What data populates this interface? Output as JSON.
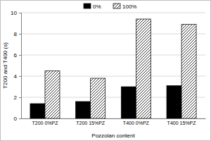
{
  "chart_data": {
    "type": "bar",
    "x_label": "Pozzolan content",
    "y_label": "T200 and T400 (s)",
    "categories": [
      "T200 0%PZ",
      "T200 15%PZ",
      "T400 0%PZ",
      "T400 15%PZ"
    ],
    "series": [
      {
        "name": "0%",
        "color": "#000000",
        "values": [
          1.4,
          1.6,
          3.0,
          3.1
        ]
      },
      {
        "name": "100%",
        "color": "#000000",
        "values": [
          4.5,
          3.8,
          9.4,
          8.9
        ]
      }
    ],
    "ylim": [
      0,
      10
    ],
    "yticks": [
      0,
      2,
      4,
      6,
      8,
      10
    ],
    "grid": true,
    "legend": "top"
  }
}
